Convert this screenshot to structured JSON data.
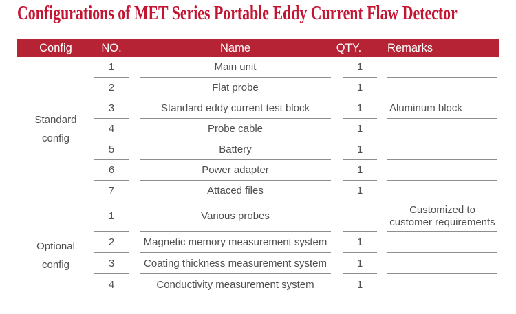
{
  "title": "Configurations of MET Series Portable Eddy Current Flaw Detector",
  "colors": {
    "title_red": "#c31532",
    "header_bar_red": "#b52334",
    "line_gray": "#8e8e8e",
    "body_text_gray": "#4f4f4f",
    "header_text": "#ffffff"
  },
  "table": {
    "headers": [
      "Config",
      "NO.",
      "Name",
      "QTY.",
      "Remarks"
    ],
    "sections": [
      {
        "config": "Standard config",
        "rows": [
          {
            "no": "1",
            "name": "Main unit",
            "qty": "1",
            "remarks": ""
          },
          {
            "no": "2",
            "name": "Flat probe",
            "qty": "1",
            "remarks": ""
          },
          {
            "no": "3",
            "name": "Standard eddy current test block",
            "qty": "1",
            "remarks": "Aluminum block"
          },
          {
            "no": "4",
            "name": "Probe cable",
            "qty": "1",
            "remarks": ""
          },
          {
            "no": "5",
            "name": "Battery",
            "qty": "1",
            "remarks": ""
          },
          {
            "no": "6",
            "name": "Power adapter",
            "qty": "1",
            "remarks": ""
          },
          {
            "no": "7",
            "name": "Attaced files",
            "qty": "1",
            "remarks": ""
          }
        ]
      },
      {
        "config": "Optional config",
        "rows": [
          {
            "no": "1",
            "name": "Various probes",
            "qty": "",
            "remarks": "Customized to customer requirements"
          },
          {
            "no": "2",
            "name": "Magnetic memory measurement system",
            "qty": "1",
            "remarks": ""
          },
          {
            "no": "3",
            "name": "Coating thickness measurement system",
            "qty": "1",
            "remarks": ""
          },
          {
            "no": "4",
            "name": "Conductivity measurement system",
            "qty": "1",
            "remarks": ""
          }
        ]
      }
    ]
  }
}
